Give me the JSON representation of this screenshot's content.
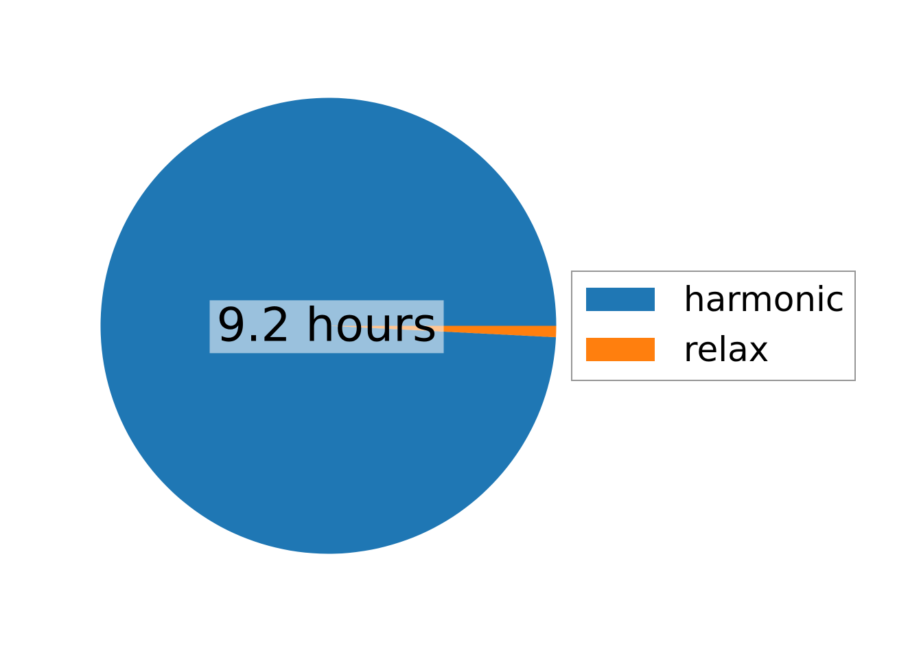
{
  "page": {
    "background": "#ffffff"
  },
  "chart_data": {
    "type": "pie",
    "title": "",
    "categories": [
      "harmonic",
      "relax"
    ],
    "values_pct": [
      99.2,
      0.8
    ],
    "values_hours_est": [
      9.2,
      0.07
    ],
    "center_label": "9.2 hours",
    "colors": [
      "#1f77b4",
      "#ff7f0e"
    ],
    "start_angle_deg": 0,
    "direction": "counterclockwise",
    "grid": false,
    "legend": {
      "position": "center-right",
      "border_color": "#969696",
      "entries": [
        {
          "label": "harmonic",
          "color": "#1f77b4"
        },
        {
          "label": "relax",
          "color": "#ff7f0e"
        }
      ]
    }
  }
}
